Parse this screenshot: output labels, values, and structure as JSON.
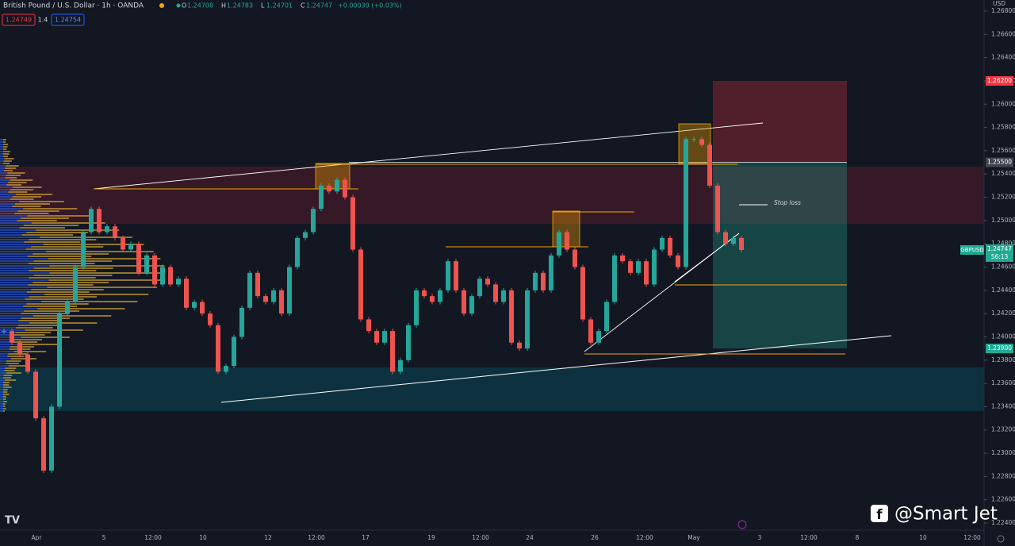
{
  "chart_data": {
    "type": "candlestick",
    "title": "British Pound / U.S. Dollar · 1h · OANDA",
    "ohlc": [
      {
        "key": "O",
        "text": "1.24708"
      },
      {
        "key": "H",
        "text": "1.24783"
      },
      {
        "key": "L",
        "text": "1.24701"
      },
      {
        "key": "C",
        "text": "1.24747"
      }
    ],
    "change": "+0.00039 (+0.03%)",
    "badges": [
      "1.24749",
      "1.4",
      "1.24754"
    ],
    "currency": "USD",
    "annotation": "Stop loss",
    "watermark": "@Smart Jet",
    "x_labels": [
      "Apr",
      "5",
      "12:00",
      "10",
      "12",
      "12:00",
      "17",
      "19",
      "12:00",
      "24",
      "26",
      "12:00",
      "May",
      "3",
      "12:00",
      "8",
      "10",
      "12:00"
    ],
    "ylim": [
      1.224,
      1.268
    ],
    "yticks": [
      {
        "value": 1.268,
        "label": "1.26800"
      },
      {
        "value": 1.266,
        "label": "1.26600"
      },
      {
        "value": 1.264,
        "label": "1.26400"
      },
      {
        "value": 1.262,
        "label": "1.26200"
      },
      {
        "value": 1.26,
        "label": "1.26000"
      },
      {
        "value": 1.258,
        "label": "1.25800"
      },
      {
        "value": 1.256,
        "label": "1.25600"
      },
      {
        "value": 1.254,
        "label": "1.25400"
      },
      {
        "value": 1.252,
        "label": "1.25200"
      },
      {
        "value": 1.25,
        "label": "1.25000"
      },
      {
        "value": 1.248,
        "label": "1.24800"
      },
      {
        "value": 1.246,
        "label": "1.24600"
      },
      {
        "value": 1.244,
        "label": "1.24400"
      },
      {
        "value": 1.242,
        "label": "1.24200"
      },
      {
        "value": 1.24,
        "label": "1.24000"
      },
      {
        "value": 1.238,
        "label": "1.23800"
      },
      {
        "value": 1.236,
        "label": "1.23600"
      },
      {
        "value": 1.234,
        "label": "1.23400"
      },
      {
        "value": 1.232,
        "label": "1.23200"
      },
      {
        "value": 1.23,
        "label": "1.23000"
      },
      {
        "value": 1.228,
        "label": "1.22800"
      },
      {
        "value": 1.226,
        "label": "1.22600"
      },
      {
        "value": 1.224,
        "label": "1.22400"
      }
    ],
    "series": [
      {
        "name": "GBPUSD",
        "up_color": "#26a69a",
        "down_color": "#ef5350",
        "values": [
          1.2405,
          1.2395,
          1.2385,
          1.237,
          1.233,
          1.2285,
          1.234,
          1.242,
          1.243,
          1.246,
          1.249,
          1.251,
          1.249,
          1.2495,
          1.2485,
          1.2475,
          1.248,
          1.2455,
          1.247,
          1.2445,
          1.246,
          1.2445,
          1.245,
          1.2425,
          1.243,
          1.242,
          1.241,
          1.237,
          1.2375,
          1.24,
          1.2425,
          1.2455,
          1.2435,
          1.243,
          1.244,
          1.242,
          1.246,
          1.2485,
          1.249,
          1.251,
          1.253,
          1.2525,
          1.2535,
          1.252,
          1.2475,
          1.2415,
          1.2405,
          1.2395,
          1.2405,
          1.237,
          1.238,
          1.241,
          1.244,
          1.2435,
          1.243,
          1.244,
          1.2465,
          1.244,
          1.242,
          1.2435,
          1.245,
          1.2445,
          1.243,
          1.244,
          1.2395,
          1.239,
          1.244,
          1.2455,
          1.244,
          1.247,
          1.249,
          1.2475,
          1.246,
          1.2415,
          1.2395,
          1.2405,
          1.243,
          1.247,
          1.2465,
          1.2455,
          1.2465,
          1.2445,
          1.2475,
          1.2485,
          1.247,
          1.246,
          1.257,
          1.257,
          1.2565,
          1.253,
          1.249,
          1.248,
          1.2485,
          1.24747
        ]
      }
    ],
    "position": {
      "stop": {
        "value": 1.262,
        "label": "1.26200",
        "color": "#f23645"
      },
      "entry": {
        "value": 1.255,
        "label": "1.25500",
        "color": "#434651"
      },
      "target": {
        "value": 1.239,
        "label": "1.23900",
        "color": "#22ab94"
      }
    },
    "last_price": {
      "symbol": "GBPUSD",
      "value": 1.24747,
      "label": "1.24747",
      "countdown": "56:13",
      "color": "#22ab94"
    }
  }
}
